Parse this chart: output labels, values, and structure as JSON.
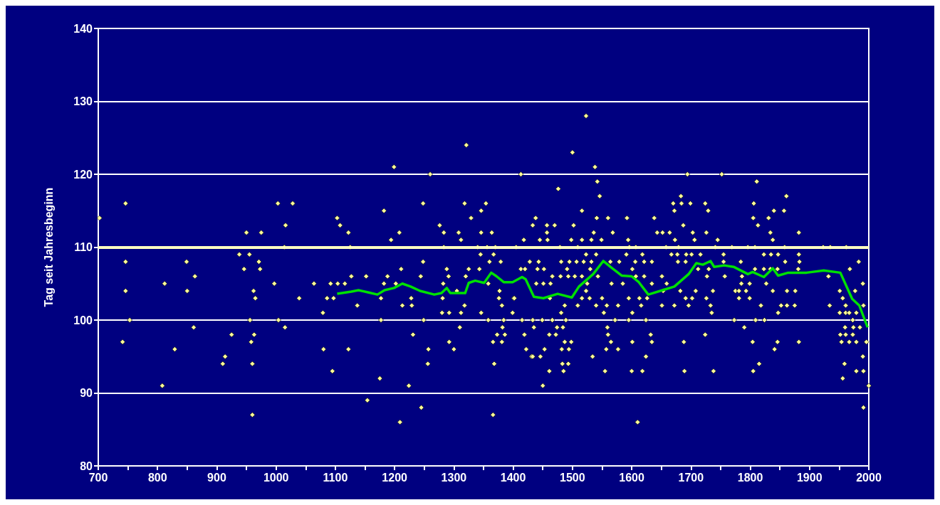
{
  "chart_data": {
    "type": "scatter",
    "ylabel": "Tag seit Jahresbeginn",
    "xlim": [
      700,
      2000
    ],
    "ylim": [
      80,
      140
    ],
    "xticks": [
      700,
      {
        "value": 750,
        "label": null
      },
      800,
      {
        "value": 850,
        "label": null
      },
      900,
      {
        "value": 950,
        "label": null
      },
      1000,
      {
        "value": 1050,
        "label": null
      },
      1100,
      {
        "value": 1150,
        "label": null
      },
      1200,
      {
        "value": 1250,
        "label": null
      },
      1300,
      {
        "value": 1350,
        "label": null
      },
      1400,
      {
        "value": 1450,
        "label": null
      },
      1500,
      {
        "value": 1550,
        "label": null
      },
      1600,
      {
        "value": 1650,
        "label": null
      },
      1700,
      {
        "value": 1750,
        "label": null
      },
      1800,
      {
        "value": 1850,
        "label": null
      },
      1900,
      {
        "value": 1950,
        "label": null
      },
      2000
    ],
    "yticks": [
      80,
      90,
      100,
      110,
      120,
      130,
      140
    ],
    "grid": "y",
    "ref_lines": [
      {
        "axis": "y",
        "value": 110,
        "color": "#ffffc0"
      }
    ],
    "series": [
      {
        "type": "scatter",
        "color": "#ffff99",
        "marker": "diamond",
        "x": [
          702,
          746,
          741,
          746,
          746,
          753,
          808,
          812,
          829,
          849,
          850,
          861,
          863,
          910,
          914,
          925,
          938,
          955,
          946,
          950,
          975,
          962,
          965,
          956,
          958,
          963,
          960,
          960,
          971,
          973,
          997,
          1003,
          1028,
          1016,
          1014,
          1004,
          1015,
          1039,
          1064,
          1079,
          1080,
          1095,
          1103,
          1108,
          1122,
          1125,
          1092,
          1104,
          1116,
          1086,
          1097,
          1127,
          1122,
          1321,
          1199,
          1260,
          1413,
          1248,
          1318,
          1354,
          1182,
          1346,
          1329,
          1276,
          1208,
          1283,
          1308,
          1346,
          1364,
          1194,
          1312,
          1418,
          1283,
          1340,
          1356,
          1370,
          1405,
          1345,
          1367,
          1248,
          1360,
          1379,
          1428,
          1211,
          1288,
          1325,
          1343,
          1413,
          1152,
          1188,
          1244,
          1291,
          1320,
          1182,
          1202,
          1282,
          1358,
          1305,
          1377,
          1177,
          1228,
          1281,
          1376,
          1401,
          1137,
          1213,
          1229,
          1318,
          1381,
          1280,
          1292,
          1312,
          1346,
          1399,
          1177,
          1249,
          1358,
          1384,
          1415,
          1310,
          1382,
          1231,
          1373,
          1386,
          1419,
          1292,
          1366,
          1381,
          1257,
          1300,
          1422,
          1431,
          1256,
          1368,
          1175,
          1224,
          1154,
          1245,
          1366,
          1209,
          1523,
          1500,
          1538,
          1694,
          1542,
          1476,
          1546,
          1683,
          1516,
          1670,
          1684,
          1699,
          1672,
          1438,
          1541,
          1560,
          1592,
          1638,
          1433,
          1457,
          1470,
          1502,
          1687,
          1457,
          1536,
          1568,
          1643,
          1652,
          1664,
          1703,
          1445,
          1458,
          1498,
          1516,
          1532,
          1549,
          1594,
          1673,
          1479,
          1509,
          1596,
          1607,
          1658,
          1679,
          1523,
          1540,
          1591,
          1618,
          1667,
          1677,
          1692,
          1701,
          1443,
          1481,
          1495,
          1507,
          1519,
          1532,
          1564,
          1579,
          1606,
          1621,
          1634,
          1678,
          1691,
          1420,
          1441,
          1452,
          1491,
          1530,
          1601,
          1466,
          1480,
          1493,
          1504,
          1516,
          1543,
          1607,
          1621,
          1651,
          1439,
          1451,
          1463,
          1525,
          1566,
          1585,
          1634,
          1659,
          1523,
          1653,
          1682,
          1402,
          1462,
          1516,
          1529,
          1550,
          1595,
          1613,
          1626,
          1691,
          1487,
          1509,
          1540,
          1558,
          1577,
          1616,
          1651,
          1672,
          1696,
          1481,
          1553,
          1601,
          1433,
          1449,
          1466,
          1489,
          1572,
          1595,
          1624,
          1435,
          1474,
          1484,
          1559,
          1461,
          1472,
          1560,
          1632,
          1487,
          1498,
          1565,
          1601,
          1634,
          1688,
          1453,
          1482,
          1494,
          1557,
          1577,
          1433,
          1446,
          1534,
          1624,
          1483,
          1493,
          1461,
          1485,
          1555,
          1600,
          1618,
          1689,
          1450,
          1610,
          1752,
          1811,
          1861,
          1724,
          1806,
          1729,
          1840,
          1857,
          1805,
          1831,
          1813,
          1726,
          1834,
          1882,
          1706,
          1745,
          1838,
          1741,
          1769,
          1796,
          1808,
          1858,
          1923,
          1935,
          1962,
          1716,
          1755,
          1823,
          1835,
          1847,
          1882,
          1755,
          1784,
          1859,
          1883,
          1983,
          1712,
          1730,
          1808,
          1823,
          1834,
          1846,
          1881,
          1968,
          1727,
          1757,
          1786,
          1932,
          1785,
          1799,
          1827,
          1990,
          1708,
          1737,
          1775,
          1781,
          1793,
          1838,
          1862,
          1876,
          1951,
          1977,
          1702,
          1726,
          1781,
          1799,
          1956,
          1733,
          1818,
          1852,
          1862,
          1875,
          1934,
          1961,
          1991,
          1735,
          1847,
          1951,
          1961,
          1967,
          1979,
          1773,
          1809,
          1824,
          1973,
          1790,
          1960,
          1974,
          1985,
          1724,
          1952,
          1961,
          1973,
          1804,
          1846,
          1882,
          1954,
          1967,
          1979,
          1996,
          1841,
          1990,
          1815,
          1959,
          1738,
          1805,
          1979,
          1991,
          1956,
          2000,
          1991
        ],
        "values": [
          114,
          116,
          97,
          108,
          104,
          100,
          91,
          105,
          96,
          108,
          104,
          99,
          106,
          94,
          95,
          98,
          109,
          109,
          107,
          112,
          112,
          104,
          103,
          100,
          97,
          98,
          94,
          87,
          108,
          107,
          105,
          116,
          116,
          113,
          110,
          100,
          99,
          103,
          105,
          101,
          96,
          93,
          114,
          113,
          112,
          110,
          105,
          105,
          105,
          103,
          103,
          106,
          96,
          124,
          121,
          120,
          120,
          116,
          116,
          116,
          115,
          115,
          114,
          113,
          112,
          112,
          112,
          112,
          112,
          111,
          111,
          111,
          110,
          110,
          110,
          110,
          110,
          109,
          109,
          108,
          108,
          108,
          108,
          107,
          107,
          107,
          107,
          107,
          106,
          106,
          106,
          106,
          106,
          105,
          105,
          105,
          105,
          104,
          104,
          103,
          103,
          103,
          103,
          103,
          102,
          102,
          102,
          102,
          102,
          101,
          101,
          101,
          101,
          101,
          100,
          100,
          100,
          100,
          100,
          99,
          99,
          98,
          98,
          98,
          98,
          97,
          97,
          97,
          96,
          96,
          96,
          95,
          94,
          94,
          92,
          91,
          89,
          88,
          87,
          86,
          128,
          123,
          121,
          120,
          119,
          118,
          117,
          117,
          115,
          116,
          116,
          116,
          115,
          114,
          114,
          114,
          114,
          114,
          113,
          113,
          113,
          113,
          113,
          112,
          112,
          112,
          112,
          112,
          112,
          112,
          111,
          111,
          111,
          111,
          111,
          111,
          111,
          111,
          110,
          110,
          110,
          110,
          110,
          110,
          109,
          109,
          109,
          109,
          109,
          109,
          109,
          109,
          108,
          108,
          108,
          108,
          108,
          108,
          108,
          108,
          108,
          108,
          108,
          108,
          108,
          107,
          107,
          107,
          107,
          107,
          107,
          106,
          106,
          106,
          106,
          106,
          106,
          106,
          106,
          106,
          105,
          105,
          105,
          105,
          105,
          105,
          105,
          105,
          104,
          104,
          104,
          103,
          103,
          103,
          103,
          103,
          103,
          103,
          103,
          103,
          102,
          102,
          102,
          102,
          102,
          102,
          102,
          102,
          102,
          101,
          101,
          101,
          100,
          100,
          100,
          100,
          100,
          100,
          100,
          99,
          99,
          99,
          99,
          98,
          98,
          98,
          98,
          97,
          97,
          97,
          97,
          97,
          97,
          96,
          96,
          96,
          96,
          96,
          95,
          95,
          95,
          95,
          94,
          94,
          93,
          93,
          93,
          93,
          93,
          93,
          91,
          86,
          120,
          119,
          117,
          116,
          116,
          115,
          115,
          115,
          114,
          114,
          113,
          112,
          112,
          112,
          111,
          111,
          111,
          110,
          110,
          110,
          110,
          110,
          110,
          110,
          110,
          109,
          109,
          109,
          109,
          109,
          109,
          108,
          108,
          108,
          108,
          108,
          107,
          107,
          107,
          107,
          107,
          107,
          107,
          107,
          106,
          106,
          106,
          106,
          105,
          105,
          105,
          105,
          104,
          104,
          104,
          104,
          104,
          104,
          104,
          104,
          104,
          104,
          103,
          103,
          103,
          103,
          103,
          102,
          102,
          102,
          102,
          102,
          102,
          102,
          102,
          101,
          101,
          101,
          101,
          101,
          101,
          100,
          100,
          100,
          100,
          99,
          99,
          99,
          99,
          98,
          98,
          98,
          98,
          97,
          97,
          97,
          97,
          97,
          97,
          97,
          96,
          95,
          94,
          94,
          93,
          93,
          93,
          93,
          92,
          91,
          88
        ]
      },
      {
        "type": "line",
        "color": "#00e000",
        "marker": "none",
        "x": [
          1103,
          1127,
          1139,
          1155,
          1171,
          1183,
          1199,
          1213,
          1227,
          1243,
          1267,
          1279,
          1288,
          1294,
          1319,
          1325,
          1336,
          1351,
          1363,
          1372,
          1384,
          1399,
          1415,
          1421,
          1435,
          1451,
          1475,
          1499,
          1511,
          1535,
          1552,
          1564,
          1583,
          1600,
          1612,
          1628,
          1652,
          1672,
          1696,
          1709,
          1720,
          1733,
          1739,
          1756,
          1772,
          1796,
          1804,
          1823,
          1838,
          1847,
          1864,
          1895,
          1924,
          1952,
          1972,
          1984,
          1998
        ],
        "values": [
          103.6,
          103.9,
          104.1,
          103.8,
          103.5,
          104.1,
          104.4,
          105.0,
          104.6,
          104.0,
          103.5,
          103.7,
          104.4,
          103.7,
          103.7,
          105.1,
          105.4,
          105.1,
          106.5,
          106.0,
          105.2,
          105.2,
          105.9,
          105.6,
          103.2,
          103.0,
          103.6,
          103.1,
          104.6,
          106.3,
          108.1,
          107.3,
          106.1,
          106.0,
          105.2,
          103.5,
          104.1,
          104.6,
          106.3,
          107.8,
          107.6,
          108.1,
          107.3,
          107.5,
          107.3,
          106.3,
          106.6,
          105.9,
          107.1,
          106.1,
          106.5,
          106.5,
          106.8,
          106.5,
          102.9,
          102.0,
          99.0
        ]
      }
    ]
  }
}
